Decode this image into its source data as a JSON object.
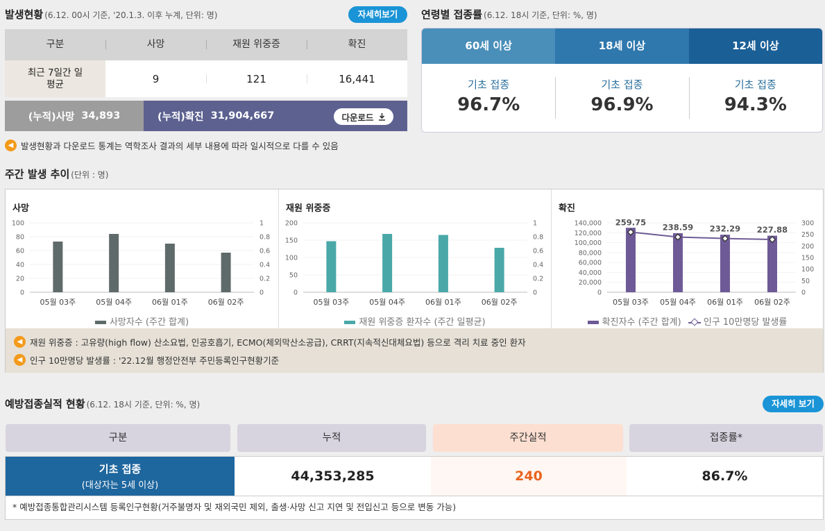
{
  "status": {
    "title": "발생현황",
    "subtitle": "(6.12. 00시 기준, '20.1.3. 이후 누계, 단위: 명)",
    "detail_button": "자세히보기",
    "headers": [
      "구분",
      "사망",
      "재원 위중증",
      "확진"
    ],
    "row": {
      "label": "최근 7일간 일평균",
      "values": [
        "9",
        "121",
        "16,441"
      ]
    },
    "cum_death_label": "(누적)사망",
    "cum_death_value": "34,893",
    "cum_conf_label": "(누적)확진",
    "cum_conf_value": "31,904,667",
    "download_label": "다운로드",
    "note": "발생현황과 다운로드 통계는 역학조사 결과의 세부 내용에 따라 일시적으로 다를 수 있음"
  },
  "age_vax": {
    "title": "연령별 접종률",
    "subtitle": "(6.12. 18시 기준, 단위: %, 명)",
    "tabs": [
      "60세 이상",
      "18세 이상",
      "12세 이상"
    ],
    "tab_colors": [
      "#4a8fba",
      "#2f78ad",
      "#1b5f97"
    ],
    "label": "기초 접종",
    "values": [
      "96.7%",
      "96.9%",
      "94.3%"
    ]
  },
  "weekly": {
    "title": "주간 발생 추이",
    "subtitle": "(단위 : 명)",
    "notes": [
      "재원 위중증 : 고유량(high flow) 산소요법, 인공호흡기, ECMO(체외막산소공급), CRRT(지속적신대체요법) 등으로 격리 치료 중인 환자",
      "인구 10만명당 발생률 : '22.12월 행정안전부 주민등록인구현황기준"
    ]
  },
  "chart_data": [
    {
      "type": "bar",
      "title": "사망",
      "categories": [
        "05월 03주",
        "05월 04주",
        "06월 01주",
        "06월 02주"
      ],
      "series": [
        {
          "name": "사망자수 (주간 합계)",
          "values": [
            73,
            84,
            70,
            57
          ],
          "color": "#5f6a6a"
        }
      ],
      "ylim": [
        0,
        100
      ],
      "yticks": [
        "0",
        "20",
        "40",
        "60",
        "80",
        "100"
      ],
      "y2ticks": [
        "0",
        "0.2",
        "0.4",
        "0.6",
        "0.8",
        "1"
      ]
    },
    {
      "type": "bar",
      "title": "재원 위중증",
      "categories": [
        "05월 03주",
        "05월 04주",
        "06월 01주",
        "06월 02주"
      ],
      "series": [
        {
          "name": "재원 위중증 환자수 (주간 일평균)",
          "values": [
            147,
            168,
            165,
            128
          ],
          "color": "#4aa8a8"
        }
      ],
      "ylim": [
        0,
        200
      ],
      "yticks": [
        "0",
        "50",
        "100",
        "150",
        "200"
      ],
      "y2ticks": [
        "0",
        "0.2",
        "0.4",
        "0.6",
        "0.8",
        "1"
      ]
    },
    {
      "type": "bar",
      "title": "확진",
      "categories": [
        "05월 03주",
        "05월 04주",
        "06월 01주",
        "06월 02주"
      ],
      "series": [
        {
          "name": "확진자수 (주간 합계)",
          "values": [
            130000,
            119000,
            116000,
            114000
          ],
          "color": "#6e5a96"
        },
        {
          "name": "인구 10만명당 발생률",
          "values": [
            259.75,
            238.59,
            232.29,
            227.88
          ],
          "color": "#6e5a96",
          "labels": [
            "259.75",
            "238.59",
            "232.29",
            "227.88"
          ]
        }
      ],
      "ylim": [
        0,
        140000
      ],
      "y2lim": [
        0,
        300
      ],
      "yticks": [
        "0",
        "20,000",
        "40,000",
        "60,000",
        "80,000",
        "100,000",
        "120,000",
        "140,000"
      ],
      "y2ticks": [
        "0",
        "50",
        "100",
        "150",
        "200",
        "250",
        "300"
      ]
    }
  ],
  "vax_results": {
    "title": "예방접종실적 현황",
    "subtitle": "(6.12. 18시 기준, 단위: %, 명)",
    "detail_button": "자세히 보기",
    "headers": [
      "구분",
      "누적",
      "주간실적",
      "접종률*"
    ],
    "row_title": "기초 접종",
    "row_subtitle": "(대상자는 5세 이상)",
    "cumulative": "44,353,285",
    "weekly": "240",
    "rate": "86.7%",
    "footnote": "* 예방접종통합관리시스템 등록인구현황(거주불명자 및 재외국민 제외, 출생·사망 신고 지연 및 전입신고 등으로 변동 가능)",
    "weekly_color": "#e8641e"
  }
}
